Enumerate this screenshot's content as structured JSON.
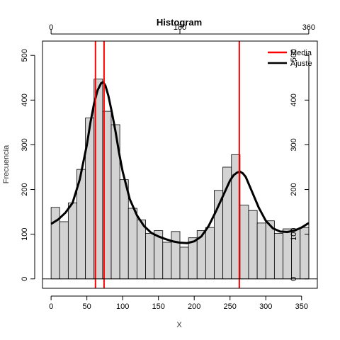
{
  "chart_data": {
    "type": "bar",
    "title": "Histogram",
    "xlabel": "X",
    "ylabel": "Frecuencia",
    "xlim": [
      -12,
      372
    ],
    "ylim": [
      -21,
      532
    ],
    "x_ticks": [
      0,
      50,
      100,
      150,
      200,
      250,
      300,
      350
    ],
    "y_ticks": [
      0,
      100,
      200,
      300,
      400,
      500
    ],
    "top_ticks": [
      0,
      180,
      360
    ],
    "top_tick_labels": [
      "0",
      "180",
      "360"
    ],
    "bin_width": 12,
    "bins": [
      {
        "start": 0,
        "end": 12,
        "value": 160
      },
      {
        "start": 12,
        "end": 24,
        "value": 128
      },
      {
        "start": 24,
        "end": 36,
        "value": 170
      },
      {
        "start": 36,
        "end": 48,
        "value": 245
      },
      {
        "start": 48,
        "end": 60,
        "value": 360
      },
      {
        "start": 60,
        "end": 72,
        "value": 447
      },
      {
        "start": 72,
        "end": 84,
        "value": 375
      },
      {
        "start": 84,
        "end": 96,
        "value": 345
      },
      {
        "start": 96,
        "end": 108,
        "value": 222
      },
      {
        "start": 108,
        "end": 120,
        "value": 158
      },
      {
        "start": 120,
        "end": 132,
        "value": 132
      },
      {
        "start": 132,
        "end": 144,
        "value": 102
      },
      {
        "start": 144,
        "end": 156,
        "value": 108
      },
      {
        "start": 156,
        "end": 168,
        "value": 82
      },
      {
        "start": 168,
        "end": 180,
        "value": 106
      },
      {
        "start": 180,
        "end": 192,
        "value": 71
      },
      {
        "start": 192,
        "end": 204,
        "value": 92
      },
      {
        "start": 204,
        "end": 216,
        "value": 108
      },
      {
        "start": 216,
        "end": 228,
        "value": 115
      },
      {
        "start": 228,
        "end": 240,
        "value": 198
      },
      {
        "start": 240,
        "end": 252,
        "value": 250
      },
      {
        "start": 252,
        "end": 264,
        "value": 278
      },
      {
        "start": 264,
        "end": 276,
        "value": 165
      },
      {
        "start": 276,
        "end": 288,
        "value": 153
      },
      {
        "start": 288,
        "end": 300,
        "value": 125
      },
      {
        "start": 300,
        "end": 312,
        "value": 130
      },
      {
        "start": 312,
        "end": 324,
        "value": 102
      },
      {
        "start": 324,
        "end": 336,
        "value": 112
      },
      {
        "start": 336,
        "end": 348,
        "value": 112
      },
      {
        "start": 348,
        "end": 360,
        "value": 115
      }
    ],
    "vertical_lines": [
      62,
      74,
      263
    ],
    "fit_curve": {
      "name": "Ajuste",
      "x": [
        0,
        10,
        20,
        30,
        40,
        50,
        55,
        60,
        65,
        70,
        73,
        76,
        80,
        85,
        90,
        95,
        100,
        110,
        120,
        130,
        140,
        150,
        160,
        170,
        180,
        190,
        200,
        210,
        220,
        230,
        240,
        250,
        255,
        260,
        264,
        268,
        272,
        280,
        290,
        300,
        310,
        320,
        330,
        340,
        350,
        360
      ],
      "y": [
        123,
        133,
        148,
        170,
        222,
        300,
        350,
        392,
        422,
        438,
        440,
        432,
        410,
        372,
        330,
        282,
        240,
        178,
        142,
        118,
        103,
        95,
        89,
        84,
        81,
        80,
        84,
        95,
        118,
        150,
        185,
        220,
        232,
        238,
        240,
        236,
        228,
        198,
        160,
        130,
        113,
        106,
        105,
        108,
        115,
        125
      ]
    },
    "legend": {
      "position": "top-right",
      "entries": [
        {
          "label": "Media",
          "color": "#ff0000"
        },
        {
          "label": "Ajuste",
          "color": "#000000"
        }
      ]
    },
    "colors": {
      "bar_fill": "#d3d3d3",
      "bar_stroke": "#000000",
      "mean_line": "#ff0000",
      "fit_line": "#000000"
    }
  }
}
